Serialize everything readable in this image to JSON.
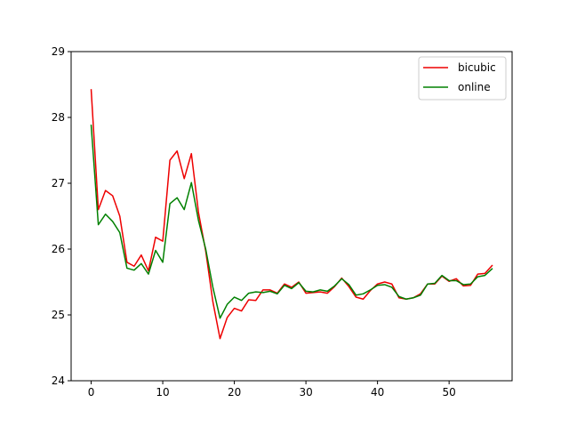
{
  "chart_data": {
    "type": "line",
    "title": "",
    "xlabel": "",
    "ylabel": "",
    "xlim": [
      -2.8,
      58.8
    ],
    "ylim": [
      24,
      29
    ],
    "xticks": [
      "0",
      "10",
      "20",
      "30",
      "40",
      "50"
    ],
    "yticks": [
      "24",
      "25",
      "26",
      "27",
      "28",
      "29"
    ],
    "grid": false,
    "legend": "top-right",
    "x": [
      0,
      1,
      2,
      3,
      4,
      5,
      6,
      7,
      8,
      9,
      10,
      11,
      12,
      13,
      14,
      15,
      16,
      17,
      18,
      19,
      20,
      21,
      22,
      23,
      24,
      25,
      26,
      27,
      28,
      29,
      30,
      31,
      32,
      33,
      34,
      35,
      36,
      37,
      38,
      39,
      40,
      41,
      42,
      43,
      44,
      45,
      46,
      47,
      48,
      49,
      50,
      51,
      52,
      53,
      54,
      55,
      56
    ],
    "series": [
      {
        "name": "bicubic",
        "color": "#ee0000",
        "values": [
          28.42,
          26.6,
          26.89,
          26.81,
          26.5,
          25.8,
          25.74,
          25.91,
          25.67,
          26.18,
          26.12,
          27.35,
          27.49,
          27.07,
          27.45,
          26.55,
          25.97,
          25.2,
          24.64,
          24.96,
          25.1,
          25.06,
          25.23,
          25.22,
          25.38,
          25.38,
          25.33,
          25.47,
          25.42,
          25.5,
          25.33,
          25.34,
          25.35,
          25.33,
          25.43,
          25.56,
          25.43,
          25.27,
          25.24,
          25.37,
          25.47,
          25.5,
          25.47,
          25.26,
          25.24,
          25.26,
          25.32,
          25.47,
          25.47,
          25.59,
          25.51,
          25.55,
          25.44,
          25.45,
          25.62,
          25.63,
          25.75
        ]
      },
      {
        "name": "online",
        "color": "#008000",
        "values": [
          27.88,
          26.37,
          26.53,
          26.42,
          26.25,
          25.71,
          25.68,
          25.78,
          25.62,
          25.98,
          25.8,
          26.69,
          26.78,
          26.6,
          27.01,
          26.43,
          26.0,
          25.42,
          24.95,
          25.16,
          25.27,
          25.22,
          25.33,
          25.35,
          25.34,
          25.36,
          25.32,
          25.45,
          25.4,
          25.49,
          25.36,
          25.35,
          25.38,
          25.36,
          25.44,
          25.55,
          25.46,
          25.3,
          25.32,
          25.38,
          25.45,
          25.46,
          25.42,
          25.28,
          25.24,
          25.26,
          25.3,
          25.47,
          25.48,
          25.6,
          25.52,
          25.52,
          25.46,
          25.47,
          25.58,
          25.6,
          25.7
        ]
      }
    ]
  }
}
